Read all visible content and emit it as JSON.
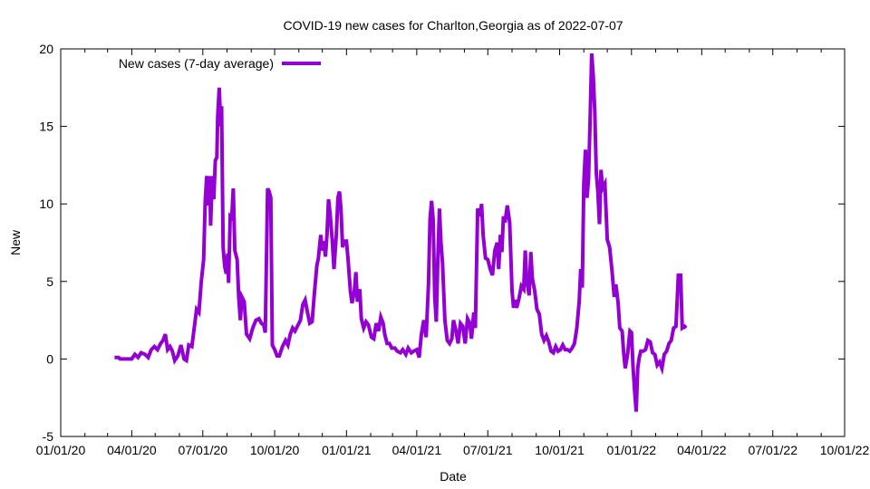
{
  "chart_data": {
    "type": "line",
    "title": "COVID-19 new cases for Charlton,Georgia as of 2022-07-07",
    "xlabel": "Date",
    "ylabel": "New",
    "xlim": [
      "2020-01-01",
      "2022-10-01"
    ],
    "ylim": [
      -5,
      20
    ],
    "yticks": [
      -5,
      0,
      5,
      10,
      15,
      20
    ],
    "xticks": [
      {
        "date": "2020-01-01",
        "label": "01/01/20"
      },
      {
        "date": "2020-04-01",
        "label": "04/01/20"
      },
      {
        "date": "2020-07-01",
        "label": "07/01/20"
      },
      {
        "date": "2020-10-01",
        "label": "10/01/20"
      },
      {
        "date": "2021-01-01",
        "label": "01/01/21"
      },
      {
        "date": "2021-04-01",
        "label": "04/01/21"
      },
      {
        "date": "2021-07-01",
        "label": "07/01/21"
      },
      {
        "date": "2021-10-01",
        "label": "10/01/21"
      },
      {
        "date": "2022-01-01",
        "label": "01/01/22"
      },
      {
        "date": "2022-04-01",
        "label": "04/01/22"
      },
      {
        "date": "2022-07-01",
        "label": "07/01/22"
      },
      {
        "date": "2022-10-01",
        "label": "10/01/22"
      }
    ],
    "legend_position": "top-left",
    "grid": false,
    "series": [
      {
        "name": "New cases (7-day average)",
        "color": "#9400d3",
        "points": [
          [
            "2020-03-10",
            0.1
          ],
          [
            "2020-03-15",
            0.1
          ],
          [
            "2020-03-17",
            0
          ],
          [
            "2020-03-25",
            0
          ],
          [
            "2020-04-01",
            0
          ],
          [
            "2020-04-05",
            0.3
          ],
          [
            "2020-04-09",
            0.1
          ],
          [
            "2020-04-13",
            0.4
          ],
          [
            "2020-04-18",
            0.3
          ],
          [
            "2020-04-22",
            0.1
          ],
          [
            "2020-04-26",
            0.6
          ],
          [
            "2020-04-30",
            0.8
          ],
          [
            "2020-05-04",
            0.6
          ],
          [
            "2020-05-08",
            1.0
          ],
          [
            "2020-05-11",
            1.2
          ],
          [
            "2020-05-14",
            1.6
          ],
          [
            "2020-05-17",
            0.6
          ],
          [
            "2020-05-20",
            0.8
          ],
          [
            "2020-05-23",
            0.5
          ],
          [
            "2020-05-26",
            -0.1
          ],
          [
            "2020-05-30",
            0.2
          ],
          [
            "2020-06-03",
            0.9
          ],
          [
            "2020-06-07",
            0
          ],
          [
            "2020-06-10",
            -0.1
          ],
          [
            "2020-06-13",
            0.9
          ],
          [
            "2020-06-17",
            0.8
          ],
          [
            "2020-06-20",
            2.0
          ],
          [
            "2020-06-23",
            3.2
          ],
          [
            "2020-06-26",
            3.0
          ],
          [
            "2020-06-29",
            5.0
          ],
          [
            "2020-07-02",
            6.4
          ],
          [
            "2020-07-04",
            10.1
          ],
          [
            "2020-07-06",
            11.8
          ],
          [
            "2020-07-08",
            9.9
          ],
          [
            "2020-07-10",
            11.8
          ],
          [
            "2020-07-11",
            8.6
          ],
          [
            "2020-07-13",
            11.8
          ],
          [
            "2020-07-15",
            10.3
          ],
          [
            "2020-07-17",
            12.8
          ],
          [
            "2020-07-19",
            13.0
          ],
          [
            "2020-07-20",
            15.6
          ],
          [
            "2020-07-22",
            17.5
          ],
          [
            "2020-07-24",
            15.0
          ],
          [
            "2020-07-25",
            16.3
          ],
          [
            "2020-07-27",
            7.2
          ],
          [
            "2020-07-29",
            6.0
          ],
          [
            "2020-07-31",
            5.5
          ],
          [
            "2020-08-02",
            6.8
          ],
          [
            "2020-08-03",
            4.9
          ],
          [
            "2020-08-05",
            9.2
          ],
          [
            "2020-08-07",
            9.1
          ],
          [
            "2020-08-09",
            11.0
          ],
          [
            "2020-08-11",
            7.0
          ],
          [
            "2020-08-14",
            6.4
          ],
          [
            "2020-08-16",
            4.0
          ],
          [
            "2020-08-18",
            2.5
          ],
          [
            "2020-08-20",
            4.0
          ],
          [
            "2020-08-23",
            3.7
          ],
          [
            "2020-08-26",
            1.6
          ],
          [
            "2020-08-30",
            1.3
          ],
          [
            "2020-09-03",
            2.0
          ],
          [
            "2020-09-07",
            2.5
          ],
          [
            "2020-09-11",
            2.6
          ],
          [
            "2020-09-14",
            2.3
          ],
          [
            "2020-09-17",
            2.2
          ],
          [
            "2020-09-19",
            1.7
          ],
          [
            "2020-09-22",
            11.0
          ],
          [
            "2020-09-24",
            10.8
          ],
          [
            "2020-09-26",
            10.4
          ],
          [
            "2020-09-28",
            0.9
          ],
          [
            "2020-10-01",
            0.6
          ],
          [
            "2020-10-04",
            0.2
          ],
          [
            "2020-10-07",
            0.2
          ],
          [
            "2020-10-11",
            0.8
          ],
          [
            "2020-10-15",
            1.2
          ],
          [
            "2020-10-18",
            0.9
          ],
          [
            "2020-10-21",
            1.6
          ],
          [
            "2020-10-24",
            2.0
          ],
          [
            "2020-10-27",
            1.8
          ],
          [
            "2020-10-30",
            2.1
          ],
          [
            "2020-11-03",
            2.5
          ],
          [
            "2020-11-06",
            3.5
          ],
          [
            "2020-11-09",
            3.8
          ],
          [
            "2020-11-12",
            3.0
          ],
          [
            "2020-11-15",
            2.3
          ],
          [
            "2020-11-18",
            2.4
          ],
          [
            "2020-11-21",
            4.3
          ],
          [
            "2020-11-24",
            6.0
          ],
          [
            "2020-11-26",
            6.5
          ],
          [
            "2020-11-29",
            8.0
          ],
          [
            "2020-12-01",
            7.0
          ],
          [
            "2020-12-03",
            7.6
          ],
          [
            "2020-12-05",
            6.6
          ],
          [
            "2020-12-07",
            8.0
          ],
          [
            "2020-12-09",
            10.3
          ],
          [
            "2020-12-11",
            9.4
          ],
          [
            "2020-12-14",
            7.5
          ],
          [
            "2020-12-16",
            5.8
          ],
          [
            "2020-12-19",
            8.0
          ],
          [
            "2020-12-21",
            10.4
          ],
          [
            "2020-12-23",
            10.8
          ],
          [
            "2020-12-25",
            9.6
          ],
          [
            "2020-12-27",
            7.2
          ],
          [
            "2020-12-29",
            7.6
          ],
          [
            "2021-01-01",
            7.6
          ],
          [
            "2021-01-03",
            6.4
          ],
          [
            "2021-01-06",
            4.4
          ],
          [
            "2021-01-08",
            3.6
          ],
          [
            "2021-01-11",
            4.3
          ],
          [
            "2021-01-13",
            5.6
          ],
          [
            "2021-01-15",
            3.7
          ],
          [
            "2021-01-18",
            4.5
          ],
          [
            "2021-01-20",
            2.6
          ],
          [
            "2021-01-23",
            2.0
          ],
          [
            "2021-01-26",
            2.4
          ],
          [
            "2021-01-29",
            2.2
          ],
          [
            "2021-02-02",
            1.4
          ],
          [
            "2021-02-05",
            1.3
          ],
          [
            "2021-02-08",
            2.3
          ],
          [
            "2021-02-11",
            1.8
          ],
          [
            "2021-02-14",
            2.7
          ],
          [
            "2021-02-17",
            2.3
          ],
          [
            "2021-02-19",
            1.6
          ],
          [
            "2021-02-22",
            1.0
          ],
          [
            "2021-02-25",
            1.0
          ],
          [
            "2021-02-28",
            0.7
          ],
          [
            "2021-03-04",
            0.7
          ],
          [
            "2021-03-07",
            0.5
          ],
          [
            "2021-03-11",
            0.4
          ],
          [
            "2021-03-14",
            0.6
          ],
          [
            "2021-03-18",
            0.3
          ],
          [
            "2021-03-21",
            0.7
          ],
          [
            "2021-03-25",
            0.4
          ],
          [
            "2021-03-28",
            0.5
          ],
          [
            "2021-04-01",
            0.6
          ],
          [
            "2021-04-04",
            0.1
          ],
          [
            "2021-04-07",
            1.6
          ],
          [
            "2021-04-10",
            2.5
          ],
          [
            "2021-04-13",
            1.4
          ],
          [
            "2021-04-16",
            4.8
          ],
          [
            "2021-04-18",
            9.0
          ],
          [
            "2021-04-20",
            10.2
          ],
          [
            "2021-04-22",
            9.0
          ],
          [
            "2021-04-24",
            4.0
          ],
          [
            "2021-04-26",
            2.4
          ],
          [
            "2021-04-28",
            6.4
          ],
          [
            "2021-04-30",
            9.7
          ],
          [
            "2021-05-02",
            7.5
          ],
          [
            "2021-05-04",
            6.2
          ],
          [
            "2021-05-07",
            2.5
          ],
          [
            "2021-05-10",
            1.2
          ],
          [
            "2021-05-13",
            1.0
          ],
          [
            "2021-05-16",
            1.3
          ],
          [
            "2021-05-18",
            2.5
          ],
          [
            "2021-05-21",
            1.9
          ],
          [
            "2021-05-24",
            1.0
          ],
          [
            "2021-05-27",
            2.3
          ],
          [
            "2021-05-30",
            2.1
          ],
          [
            "2021-06-02",
            1.0
          ],
          [
            "2021-06-05",
            2.6
          ],
          [
            "2021-06-08",
            2.3
          ],
          [
            "2021-06-10",
            1.3
          ],
          [
            "2021-06-13",
            3.0
          ],
          [
            "2021-06-15",
            2.0
          ],
          [
            "2021-06-18",
            9.7
          ],
          [
            "2021-06-21",
            9.2
          ],
          [
            "2021-06-23",
            10.0
          ],
          [
            "2021-06-25",
            8.0
          ],
          [
            "2021-06-28",
            6.5
          ],
          [
            "2021-07-01",
            6.4
          ],
          [
            "2021-07-04",
            5.8
          ],
          [
            "2021-07-07",
            5.4
          ],
          [
            "2021-07-10",
            7.0
          ],
          [
            "2021-07-13",
            7.5
          ],
          [
            "2021-07-15",
            5.8
          ],
          [
            "2021-07-17",
            8.0
          ],
          [
            "2021-07-19",
            6.9
          ],
          [
            "2021-07-21",
            9.2
          ],
          [
            "2021-07-23",
            8.8
          ],
          [
            "2021-07-26",
            9.9
          ],
          [
            "2021-07-29",
            8.8
          ],
          [
            "2021-08-01",
            4.4
          ],
          [
            "2021-08-03",
            3.3
          ],
          [
            "2021-08-05",
            3.8
          ],
          [
            "2021-08-07",
            3.3
          ],
          [
            "2021-08-10",
            3.9
          ],
          [
            "2021-08-13",
            4.7
          ],
          [
            "2021-08-16",
            4.5
          ],
          [
            "2021-08-18",
            7.0
          ],
          [
            "2021-08-20",
            5.0
          ],
          [
            "2021-08-23",
            4.1
          ],
          [
            "2021-08-25",
            6.9
          ],
          [
            "2021-08-27",
            5.2
          ],
          [
            "2021-08-30",
            4.4
          ],
          [
            "2021-09-02",
            3.2
          ],
          [
            "2021-09-05",
            2.9
          ],
          [
            "2021-09-08",
            1.6
          ],
          [
            "2021-09-11",
            1.2
          ],
          [
            "2021-09-14",
            1.5
          ],
          [
            "2021-09-17",
            1.1
          ],
          [
            "2021-09-20",
            0.5
          ],
          [
            "2021-09-23",
            0.4
          ],
          [
            "2021-09-26",
            0.8
          ],
          [
            "2021-09-29",
            0.5
          ],
          [
            "2021-10-02",
            0.6
          ],
          [
            "2021-10-05",
            0.9
          ],
          [
            "2021-10-08",
            0.6
          ],
          [
            "2021-10-11",
            0.6
          ],
          [
            "2021-10-14",
            0.5
          ],
          [
            "2021-10-17",
            0.7
          ],
          [
            "2021-10-20",
            1.0
          ],
          [
            "2021-10-23",
            2.0
          ],
          [
            "2021-10-26",
            3.7
          ],
          [
            "2021-10-28",
            5.8
          ],
          [
            "2021-10-30",
            4.6
          ],
          [
            "2021-11-01",
            11.3
          ],
          [
            "2021-11-03",
            13.5
          ],
          [
            "2021-11-05",
            10.4
          ],
          [
            "2021-11-07",
            11.6
          ],
          [
            "2021-11-09",
            15.3
          ],
          [
            "2021-11-11",
            19.7
          ],
          [
            "2021-11-13",
            18.3
          ],
          [
            "2021-11-15",
            16.0
          ],
          [
            "2021-11-17",
            12.0
          ],
          [
            "2021-11-19",
            10.8
          ],
          [
            "2021-11-21",
            8.7
          ],
          [
            "2021-11-23",
            12.2
          ],
          [
            "2021-11-25",
            11.0
          ],
          [
            "2021-11-28",
            11.3
          ],
          [
            "2021-12-01",
            7.7
          ],
          [
            "2021-12-04",
            7.2
          ],
          [
            "2021-12-07",
            5.7
          ],
          [
            "2021-12-10",
            4.0
          ],
          [
            "2021-12-12",
            4.8
          ],
          [
            "2021-12-15",
            3.6
          ],
          [
            "2021-12-17",
            2.0
          ],
          [
            "2021-12-20",
            1.8
          ],
          [
            "2021-12-22",
            0.4
          ],
          [
            "2021-12-24",
            -0.6
          ],
          [
            "2021-12-27",
            0.3
          ],
          [
            "2021-12-30",
            1.8
          ],
          [
            "2022-01-01",
            1.7
          ],
          [
            "2022-01-03",
            -0.5
          ],
          [
            "2022-01-05",
            -2.0
          ],
          [
            "2022-01-07",
            -3.4
          ],
          [
            "2022-01-09",
            -0.6
          ],
          [
            "2022-01-11",
            0.1
          ],
          [
            "2022-01-13",
            0.5
          ],
          [
            "2022-01-16",
            0.5
          ],
          [
            "2022-01-19",
            0.6
          ],
          [
            "2022-01-22",
            1.2
          ],
          [
            "2022-01-25",
            1.1
          ],
          [
            "2022-01-28",
            0.4
          ],
          [
            "2022-01-31",
            0.3
          ],
          [
            "2022-02-03",
            -0.4
          ],
          [
            "2022-02-06",
            -0.2
          ],
          [
            "2022-02-09",
            -0.6
          ],
          [
            "2022-02-12",
            0.3
          ],
          [
            "2022-02-15",
            0.5
          ],
          [
            "2022-02-18",
            1.0
          ],
          [
            "2022-02-21",
            1.2
          ],
          [
            "2022-02-24",
            2.0
          ],
          [
            "2022-02-27",
            2.1
          ],
          [
            "2022-03-02",
            5.4
          ],
          [
            "2022-03-05",
            5.4
          ],
          [
            "2022-03-07",
            2.0
          ],
          [
            "2022-03-10",
            2.1
          ],
          [
            "2022-03-12",
            2.0
          ]
        ]
      }
    ]
  }
}
